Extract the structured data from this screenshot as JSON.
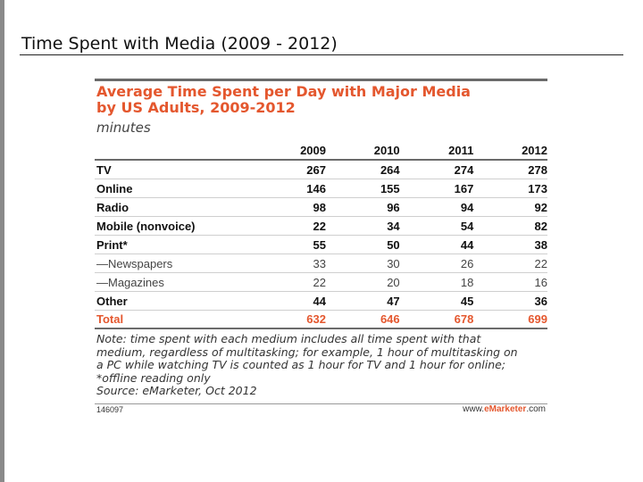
{
  "slide": {
    "title": "Time Spent with Media (2009 - 2012)"
  },
  "chart": {
    "heading_line1": "Average Time Spent per Day with Major Media",
    "heading_line2": "by US Adults, 2009-2012",
    "unit": "minutes",
    "note_line1": "Note: time spent with each medium includes all time spent with that",
    "note_line2": "medium, regardless of multitasking; for example, 1 hour of multitasking on",
    "note_line3": "a PC while watching TV is counted as 1 hour for TV and 1 hour for online;",
    "note_line4": "*offline reading only",
    "source": "Source: eMarketer, Oct 2012",
    "chart_id": "146097",
    "brand_prefix": "www.",
    "brand_name": "eMarketer",
    "brand_suffix": ".com"
  },
  "chart_data": {
    "type": "table",
    "title": "Average Time Spent per Day with Major Media by US Adults, 2009-2012",
    "unit": "minutes",
    "columns": [
      "2009",
      "2010",
      "2011",
      "2012"
    ],
    "rows": [
      {
        "label": "TV",
        "values": [
          "267",
          "264",
          "274",
          "278"
        ]
      },
      {
        "label": "Online",
        "values": [
          "146",
          "155",
          "167",
          "173"
        ]
      },
      {
        "label": "Radio",
        "values": [
          "98",
          "96",
          "94",
          "92"
        ]
      },
      {
        "label": "Mobile (nonvoice)",
        "values": [
          "22",
          "34",
          "54",
          "82"
        ]
      },
      {
        "label": "Print*",
        "values": [
          "55",
          "50",
          "44",
          "38"
        ]
      },
      {
        "label": "—Newspapers",
        "values": [
          "33",
          "30",
          "26",
          "22"
        ]
      },
      {
        "label": "—Magazines",
        "values": [
          "22",
          "20",
          "18",
          "16"
        ]
      },
      {
        "label": "Other",
        "values": [
          "44",
          "47",
          "45",
          "36"
        ]
      },
      {
        "label": "Total",
        "values": [
          "632",
          "646",
          "678",
          "699"
        ]
      }
    ]
  }
}
